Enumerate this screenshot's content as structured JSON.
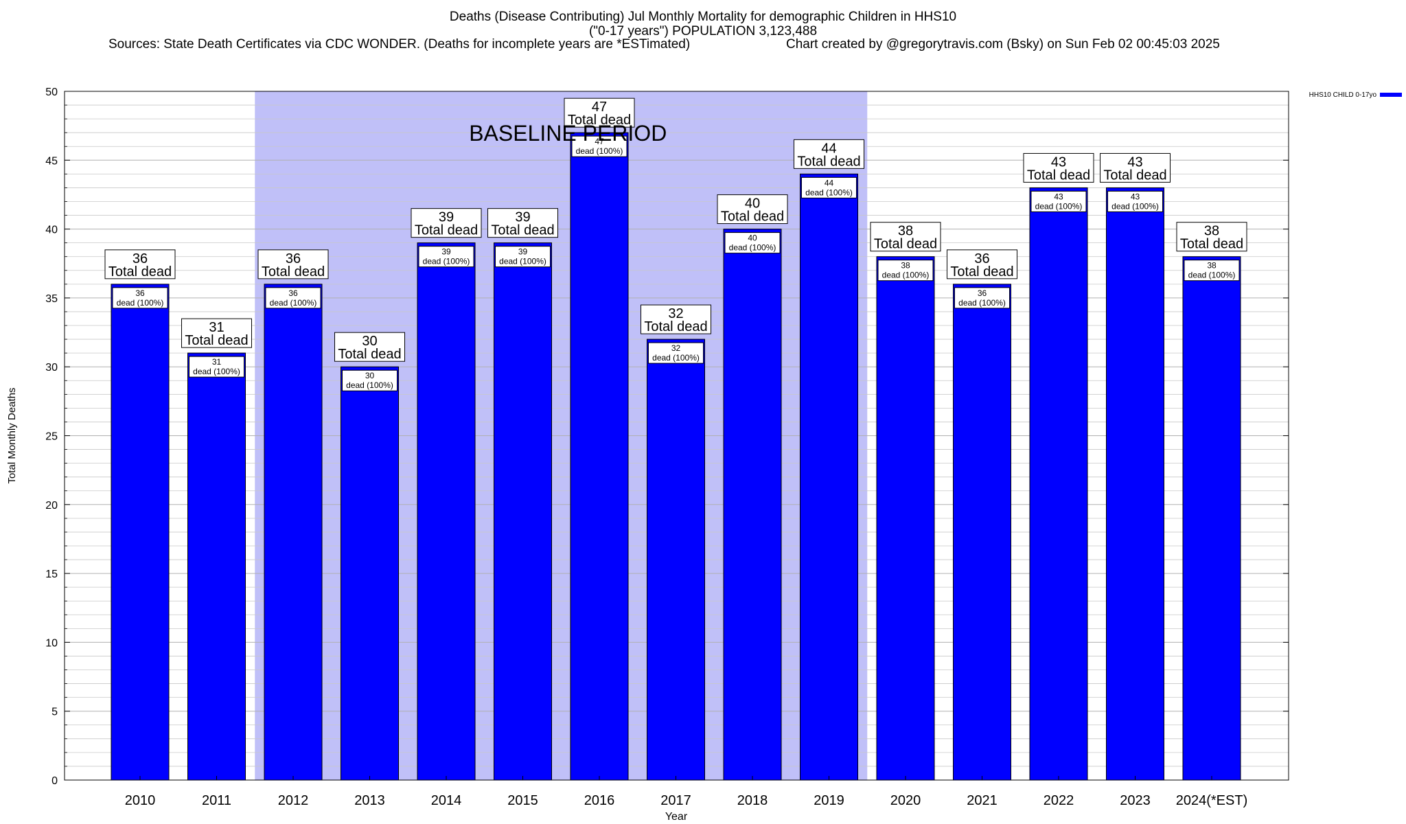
{
  "header": {
    "title": "Deaths (Disease Contributing) Jul Monthly Mortality for demographic Children in HHS10",
    "subtitle": "(\"0-17 years\") POPULATION 3,123,488",
    "sources": "Sources: State Death Certificates via CDC WONDER. (Deaths for incomplete years are *ESTimated)",
    "credit": "Chart created by @gregorytravis.com (Bsky) on Sun Feb 02 00:45:03 2025"
  },
  "chart_data": {
    "type": "bar",
    "title": "Deaths (Disease Contributing) Jul Monthly Mortality for demographic Children in HHS10",
    "xlabel": "Year",
    "ylabel": "Total Monthly Deaths",
    "ylim": [
      0,
      50
    ],
    "y_major_ticks": [
      0,
      5,
      10,
      15,
      20,
      25,
      30,
      35,
      40,
      45,
      50
    ],
    "grid": true,
    "legend_position": "top-right",
    "categories": [
      "2010",
      "2011",
      "2012",
      "2013",
      "2014",
      "2015",
      "2016",
      "2017",
      "2018",
      "2019",
      "2020",
      "2021",
      "2022",
      "2023",
      "2024(*EST)"
    ],
    "series": [
      {
        "name": "HHS10 CHILD 0-17yo",
        "color": "#0000ff",
        "values": [
          36,
          31,
          36,
          30,
          39,
          39,
          47,
          32,
          40,
          44,
          38,
          36,
          43,
          43,
          38
        ]
      }
    ],
    "top_label_line2": "Total dead",
    "inner_label_line2": "dead (100%)",
    "baseline_period": {
      "label": "BASELINE PERIOD",
      "start": "2012",
      "end": "2019",
      "color": "#c0c0f8"
    }
  }
}
